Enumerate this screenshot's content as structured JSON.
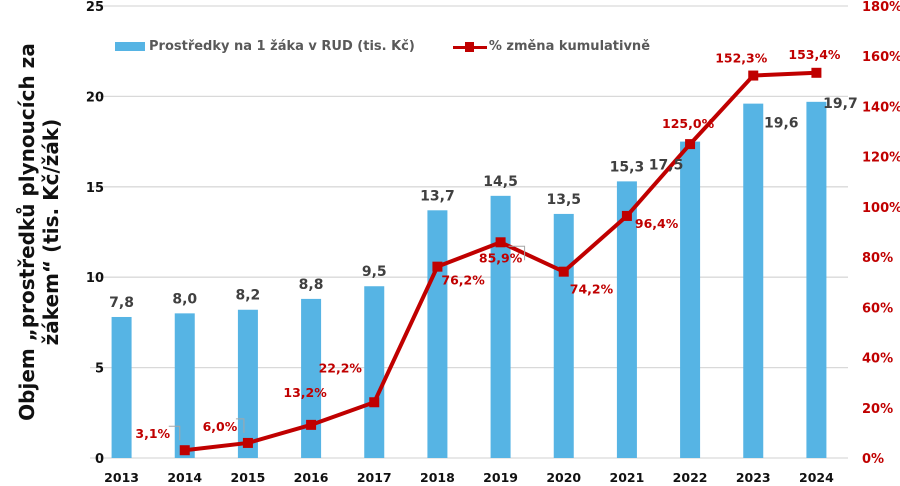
{
  "chart_data": {
    "type": "bar",
    "title": "",
    "categories": [
      "2013",
      "2014",
      "2015",
      "2016",
      "2017",
      "2018",
      "2019",
      "2020",
      "2021",
      "2022",
      "2023",
      "2024"
    ],
    "series": [
      {
        "name": "Prostředky na 1 žáka v RUD (tis. Kč)",
        "type": "bar",
        "axis": "left",
        "color": "#56b4e4",
        "values": [
          7.8,
          8.0,
          8.2,
          8.8,
          9.5,
          13.7,
          14.5,
          13.5,
          15.3,
          17.5,
          19.6,
          19.7
        ],
        "labels": [
          "7,8",
          "8,0",
          "8,2",
          "8,8",
          "9,5",
          "13,7",
          "14,5",
          "13,5",
          "15,3",
          "17,5",
          "19,6",
          "19,7"
        ]
      },
      {
        "name": "% změna kumulativně",
        "type": "line",
        "axis": "right",
        "color": "#c00000",
        "values": [
          null,
          3.1,
          6.0,
          13.2,
          22.2,
          76.2,
          85.9,
          74.2,
          96.4,
          125.0,
          152.3,
          153.4
        ],
        "labels": [
          "",
          "3,1%",
          "6,0%",
          "13,2%",
          "22,2%",
          "76,2%",
          "85,9%",
          "74,2%",
          "96,4%",
          "125,0%",
          "152,3%",
          "153,4%"
        ]
      }
    ],
    "ylabel": "Objem „prostředků plynoucích za žákem“ (tis. Kč/žák)",
    "ylabel_lines": [
      "Objem „prostředků plynoucích za",
      "žákem“ (tis. Kč/žák)"
    ],
    "xlabel": "",
    "ylim": [
      0,
      25
    ],
    "yticks": [
      "0",
      "5",
      "10",
      "15",
      "20",
      "25"
    ],
    "y2lim": [
      0,
      180
    ],
    "y2ticks": [
      "0%",
      "20%",
      "40%",
      "60%",
      "80%",
      "100%",
      "120%",
      "140%",
      "160%",
      "180%"
    ],
    "grid": true,
    "legend_position": "top-left",
    "colors": {
      "bar": "#56b4e4",
      "line": "#c00000",
      "axis_text": "#111111",
      "right_axis_text": "#c00000",
      "bar_label": "#404040",
      "grid": "#d9d9d9"
    }
  }
}
